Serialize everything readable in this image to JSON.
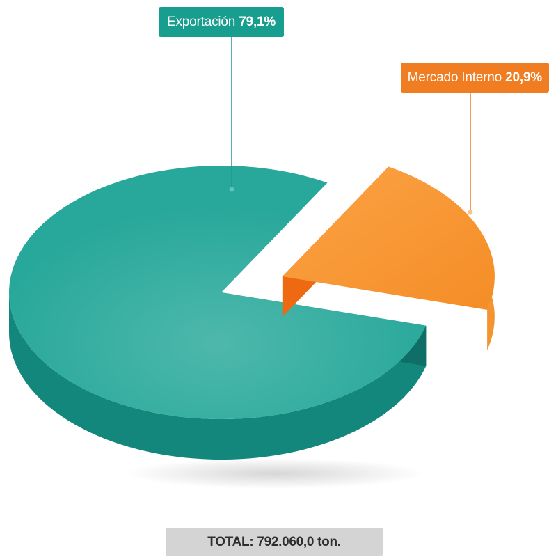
{
  "chart_data": {
    "type": "pie",
    "style": "3d-exploded",
    "slices": [
      {
        "name": "Exportación",
        "percent": 79.1,
        "percent_label": "79,1%",
        "color": "#179e8f"
      },
      {
        "name": "Mercado Interno",
        "percent": 20.9,
        "percent_label": "20,9%",
        "color": "#f07d22"
      }
    ],
    "total_label": "TOTAL: 792.060,0 ton."
  },
  "colors": {
    "teal_top": "#27a89a",
    "teal_side": "#13877c",
    "orange_top": "#fb9d35",
    "orange_side": "#ee6a12",
    "total_bg": "#d4d4d4"
  }
}
